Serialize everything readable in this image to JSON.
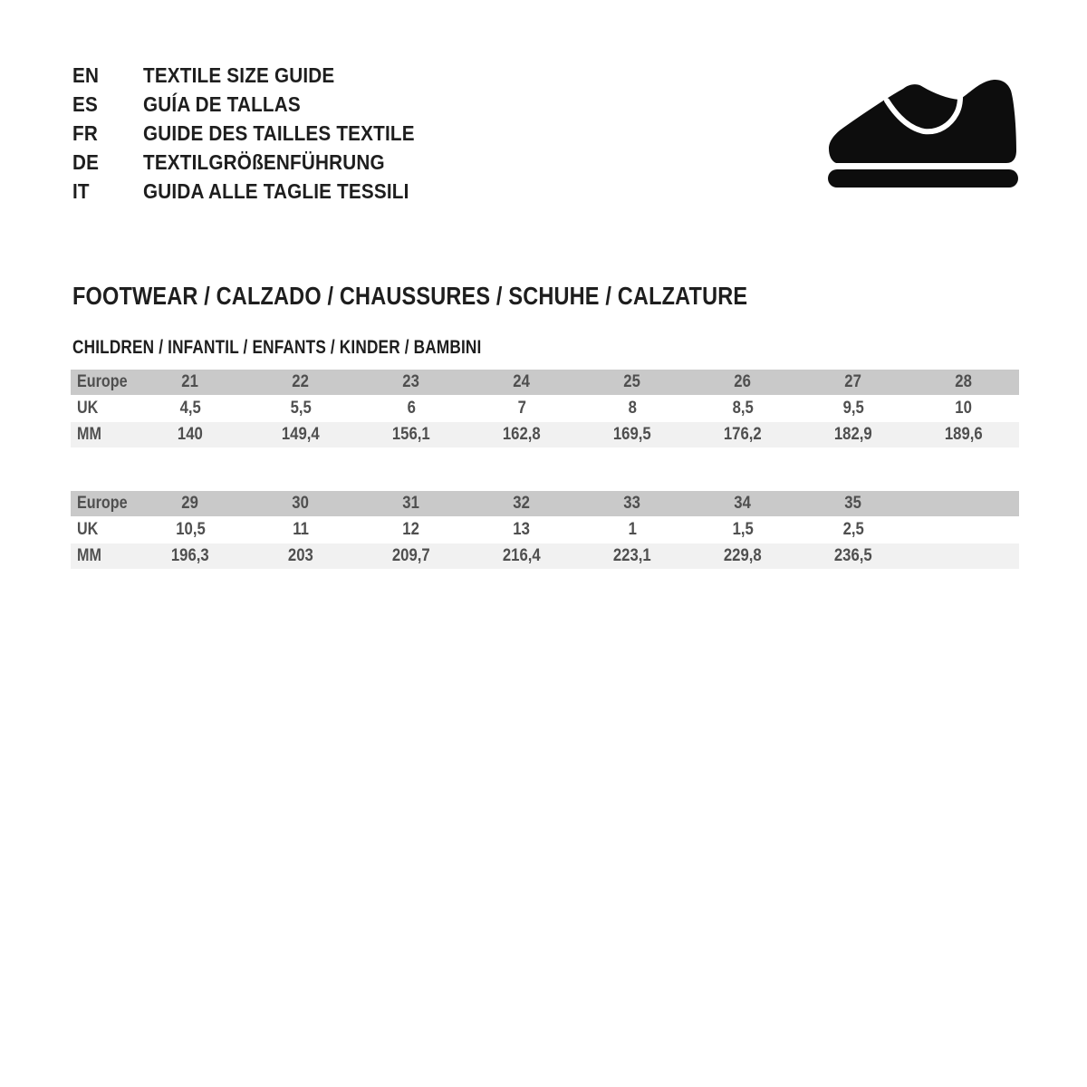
{
  "header": {
    "languages": [
      {
        "code": "EN",
        "label": "TEXTILE SIZE GUIDE"
      },
      {
        "code": "ES",
        "label": "GUÍA DE TALLAS"
      },
      {
        "code": "FR",
        "label": "GUIDE DES TAILLES TEXTILE"
      },
      {
        "code": "DE",
        "label": "TEXTILGRÖßENFÜHRUNG"
      },
      {
        "code": "IT",
        "label": "GUIDA ALLE TAGLIE TESSILI"
      }
    ],
    "icon": "children-shoe-icon"
  },
  "section": {
    "title": "FOOTWEAR / CALZADO / CHAUSSURES / SCHUHE / CALZATURE",
    "subtitle": "CHILDREN / INFANTIL / ENFANTS / KINDER / BAMBINI"
  },
  "size_tables": [
    {
      "rows": [
        {
          "label": "Europe",
          "values": [
            "21",
            "22",
            "23",
            "24",
            "25",
            "26",
            "27",
            "28"
          ]
        },
        {
          "label": "UK",
          "values": [
            "4,5",
            "5,5",
            "6",
            "7",
            "8",
            "8,5",
            "9,5",
            "10"
          ]
        },
        {
          "label": "MM",
          "values": [
            "140",
            "149,4",
            "156,1",
            "162,8",
            "169,5",
            "176,2",
            "182,9",
            "189,6"
          ]
        }
      ]
    },
    {
      "rows": [
        {
          "label": "Europe",
          "values": [
            "29",
            "30",
            "31",
            "32",
            "33",
            "34",
            "35",
            ""
          ]
        },
        {
          "label": "UK",
          "values": [
            "10,5",
            "11",
            "12",
            "13",
            "1",
            "1,5",
            "2,5",
            ""
          ]
        },
        {
          "label": "MM",
          "values": [
            "196,3",
            "203",
            "209,7",
            "216,4",
            "223,1",
            "229,8",
            "236,5",
            ""
          ]
        }
      ]
    }
  ],
  "colors": {
    "heading_text": "#1e1e1e",
    "table_text": "#4f4f4f",
    "header_row_bg": "#c9c9c9",
    "alt_row_bg": "#f1f1f1",
    "icon_color": "#0d0d0d"
  }
}
